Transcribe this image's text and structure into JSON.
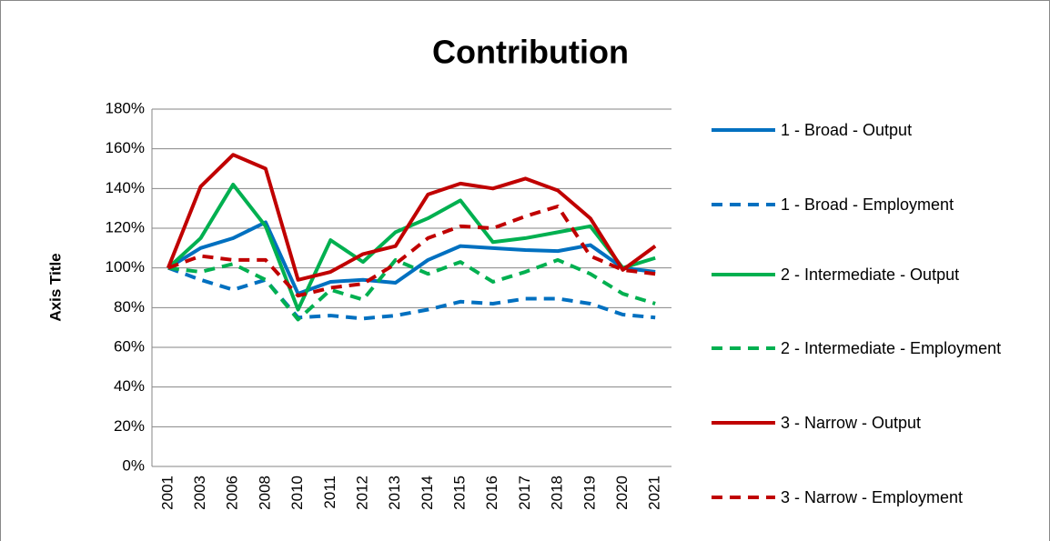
{
  "chart_data": {
    "type": "line",
    "title": "Contribution",
    "y_label": "Axis Title",
    "categories": [
      "2001",
      "2003",
      "2006",
      "2008",
      "2010",
      "2011",
      "2012",
      "2013",
      "2014",
      "2015",
      "2016",
      "2017",
      "2018",
      "2019",
      "2020",
      "2021"
    ],
    "ylim": [
      0,
      180
    ],
    "yticks": [
      {
        "value": 0,
        "label": "0%"
      },
      {
        "value": 20,
        "label": "20%"
      },
      {
        "value": 40,
        "label": "40%"
      },
      {
        "value": 60,
        "label": "60%"
      },
      {
        "value": 80,
        "label": "80%"
      },
      {
        "value": 100,
        "label": "100%"
      },
      {
        "value": 120,
        "label": "120%"
      },
      {
        "value": 140,
        "label": "140%"
      },
      {
        "value": 160,
        "label": "160%"
      },
      {
        "value": 180,
        "label": "180%"
      }
    ],
    "grid": true,
    "legend": "right",
    "series": [
      {
        "name": "1 - Broad - Output",
        "color": "#0070c0",
        "dashed": false,
        "values": [
          100,
          110,
          115,
          123,
          87,
          93,
          94,
          92.5,
          104,
          111,
          110,
          109,
          108.5,
          111.5,
          100,
          98
        ]
      },
      {
        "name": "1 - Broad - Employment",
        "color": "#0070c0",
        "dashed": true,
        "values": [
          100,
          94,
          89,
          94,
          75,
          76,
          74.5,
          76,
          79,
          83,
          82,
          84.5,
          84.5,
          82,
          76.5,
          75
        ]
      },
      {
        "name": "2 - Intermediate - Output",
        "color": "#00b050",
        "dashed": false,
        "values": [
          100,
          115,
          142,
          121,
          79,
          114,
          103,
          118,
          125,
          134,
          113,
          115,
          118,
          121,
          100,
          105
        ]
      },
      {
        "name": "2 - Intermediate - Employment",
        "color": "#00b050",
        "dashed": true,
        "values": [
          100,
          98,
          102,
          94,
          74,
          89,
          84,
          104,
          97,
          103,
          93,
          98,
          104,
          97,
          87,
          82
        ]
      },
      {
        "name": "3 - Narrow - Output",
        "color": "#c00000",
        "dashed": false,
        "values": [
          100,
          141,
          157,
          150,
          94,
          98,
          107,
          111,
          137,
          142.5,
          140,
          145,
          139,
          125,
          99,
          111
        ]
      },
      {
        "name": "3 - Narrow - Employment",
        "color": "#c00000",
        "dashed": true,
        "values": [
          100,
          106,
          104,
          104,
          86,
          90,
          92,
          102,
          115,
          121,
          120,
          126,
          131,
          106,
          99,
          97
        ]
      }
    ]
  }
}
